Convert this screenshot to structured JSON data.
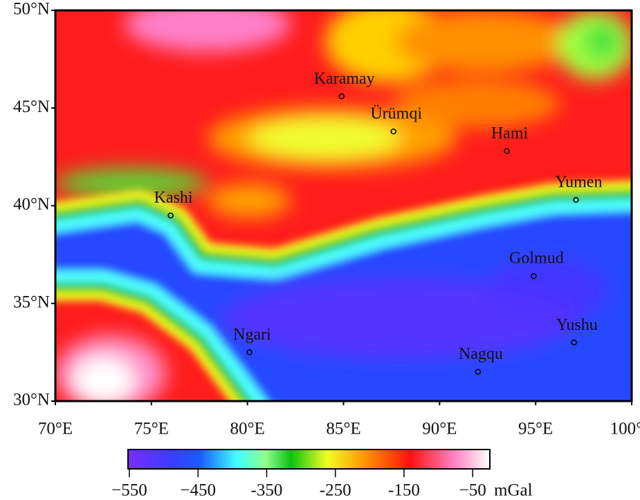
{
  "map": {
    "xlim": [
      70,
      100
    ],
    "ylim": [
      30,
      50
    ],
    "xticks": [
      {
        "value": 70,
        "label": "70°E"
      },
      {
        "value": 75,
        "label": "75°E"
      },
      {
        "value": 80,
        "label": "80°E"
      },
      {
        "value": 85,
        "label": "85°E"
      },
      {
        "value": 90,
        "label": "90°E"
      },
      {
        "value": 95,
        "label": "95°E"
      },
      {
        "value": 100,
        "label": "100°E"
      }
    ],
    "yticks": [
      {
        "value": 30,
        "label": "30°N"
      },
      {
        "value": 35,
        "label": "35°N"
      },
      {
        "value": 40,
        "label": "40°N"
      },
      {
        "value": 45,
        "label": "45°N"
      },
      {
        "value": 50,
        "label": "50°N"
      }
    ],
    "cities": [
      {
        "name": "Karamay",
        "lon": 84.9,
        "lat": 45.6
      },
      {
        "name": "Ürümqi",
        "lon": 87.6,
        "lat": 43.8
      },
      {
        "name": "Hami",
        "lon": 93.5,
        "lat": 42.8
      },
      {
        "name": "Yumen",
        "lon": 97.1,
        "lat": 40.3
      },
      {
        "name": "Kashi",
        "lon": 76.0,
        "lat": 39.5
      },
      {
        "name": "Golmud",
        "lon": 94.9,
        "lat": 36.4
      },
      {
        "name": "Yushu",
        "lon": 97.0,
        "lat": 33.0
      },
      {
        "name": "Ngari",
        "lon": 80.1,
        "lat": 32.5
      },
      {
        "name": "Nagqu",
        "lon": 92.0,
        "lat": 31.5
      }
    ],
    "colorbar": {
      "lim": [
        -552,
        -25
      ],
      "ticks": [
        {
          "value": -550,
          "label": "−550"
        },
        {
          "value": -450,
          "label": "−450"
        },
        {
          "value": -350,
          "label": "-350"
        },
        {
          "value": -250,
          "label": "-250"
        },
        {
          "value": -150,
          "label": "-150"
        },
        {
          "value": -50,
          "label": "−50"
        }
      ],
      "unit": "mGal"
    }
  }
}
